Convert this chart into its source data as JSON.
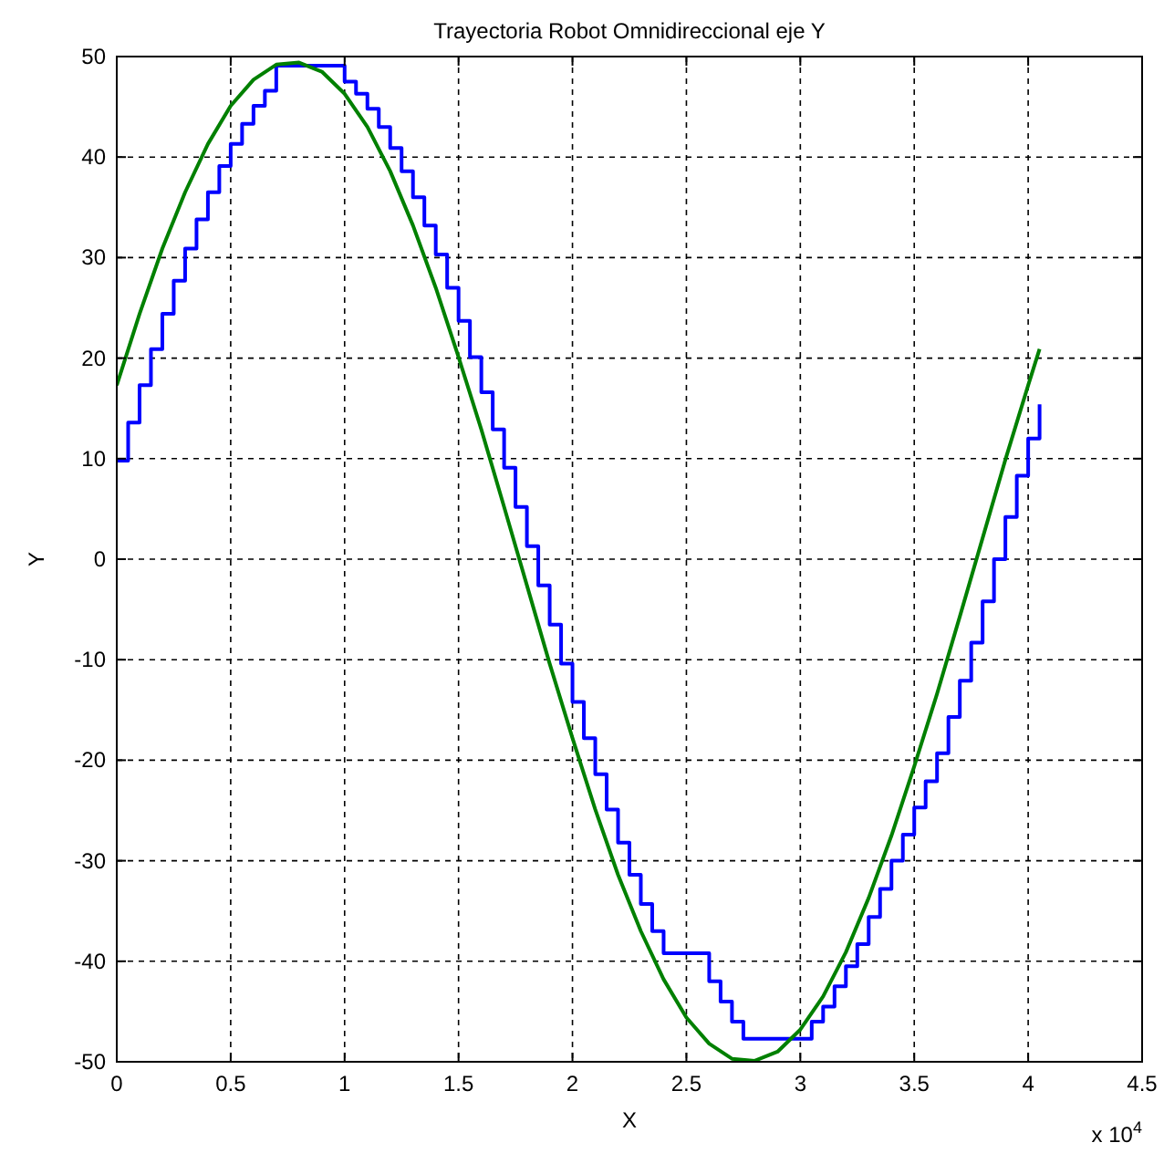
{
  "chart_data": {
    "type": "line",
    "title": "Trayectoria Robot Omnidireccional eje Y",
    "xlabel": "X",
    "ylabel": "Y",
    "annotations": [
      "x 10$^{4}$"
    ],
    "xlim": [
      0,
      4.5
    ],
    "xticks": [
      0,
      0.5,
      1,
      1.5,
      2,
      2.5,
      3,
      3.5,
      4,
      4.5
    ],
    "ylim": [
      -50,
      50
    ],
    "yticks": [
      -50,
      -40,
      -30,
      -20,
      -10,
      0,
      10,
      20,
      30,
      40,
      50
    ],
    "grid": true,
    "line_style": "solid",
    "marker": "none",
    "series": [
      {
        "type": "step",
        "color": "#0000ff",
        "x": [
          0,
          0.05,
          0.1,
          0.15,
          0.2,
          0.25,
          0.3,
          0.35,
          0.4,
          0.45,
          0.5,
          0.55,
          0.6,
          0.65,
          0.7,
          1.0,
          1.05,
          1.1,
          1.15,
          1.2,
          1.25,
          1.3,
          1.35,
          1.4,
          1.45,
          1.5,
          1.55,
          1.6,
          1.65,
          1.7,
          1.75,
          1.8,
          1.85,
          1.9,
          1.95,
          2.0,
          2.05,
          2.1,
          2.15,
          2.2,
          2.25,
          2.3,
          2.35,
          2.4,
          2.6,
          2.65,
          2.7,
          2.75,
          3.05,
          3.1,
          3.15,
          3.2,
          3.25,
          3.3,
          3.35,
          3.4,
          3.45,
          3.5,
          3.55,
          3.6,
          3.65,
          3.7,
          3.75,
          3.8,
          3.85,
          3.9,
          3.95,
          4.0,
          4.05
        ],
        "values": [
          9.8,
          13.6,
          17.3,
          20.9,
          24.4,
          27.7,
          30.9,
          33.8,
          36.5,
          39.1,
          41.3,
          43.3,
          45.1,
          46.6,
          49.1,
          47.5,
          46.3,
          44.8,
          43.0,
          40.9,
          38.6,
          36.0,
          33.2,
          30.3,
          27.0,
          23.7,
          20.1,
          16.6,
          12.9,
          9.1,
          5.2,
          1.3,
          -2.6,
          -6.5,
          -10.4,
          -14.2,
          -17.8,
          -21.4,
          -24.9,
          -28.2,
          -31.4,
          -34.3,
          -37.0,
          -39.2,
          -42.0,
          -44.0,
          -46.0,
          -47.7,
          -46.0,
          -44.5,
          -42.5,
          -40.5,
          -38.3,
          -35.6,
          -32.8,
          -30.0,
          -27.4,
          -24.7,
          -22.1,
          -19.3,
          -15.7,
          -12.1,
          -8.3,
          -4.2,
          0,
          4.2,
          8.3,
          12.0,
          15.4
        ]
      },
      {
        "type": "line",
        "color": "#008000",
        "x": [
          0,
          0.1,
          0.2,
          0.3,
          0.4,
          0.5,
          0.6,
          0.7,
          0.8,
          0.9,
          1.0,
          1.1,
          1.2,
          1.3,
          1.4,
          1.5,
          1.6,
          1.7,
          1.8,
          1.9,
          2.0,
          2.1,
          2.2,
          2.3,
          2.4,
          2.5,
          2.6,
          2.7,
          2.8,
          2.9,
          3.0,
          3.1,
          3.2,
          3.3,
          3.4,
          3.5,
          3.6,
          3.7,
          3.8,
          3.9,
          4.0,
          4.05
        ],
        "values": [
          17.3,
          24.4,
          30.9,
          36.5,
          41.3,
          45.1,
          47.7,
          49.2,
          49.4,
          48.5,
          46.3,
          43.0,
          38.6,
          33.2,
          27.0,
          20.1,
          12.9,
          5.2,
          -2.6,
          -10.4,
          -17.8,
          -24.9,
          -31.4,
          -37.0,
          -41.8,
          -45.6,
          -48.2,
          -49.7,
          -49.9,
          -49.0,
          -46.8,
          -43.5,
          -39.1,
          -33.7,
          -27.5,
          -20.6,
          -13.4,
          -5.7,
          2.1,
          9.9,
          17.3,
          20.9
        ]
      }
    ]
  }
}
